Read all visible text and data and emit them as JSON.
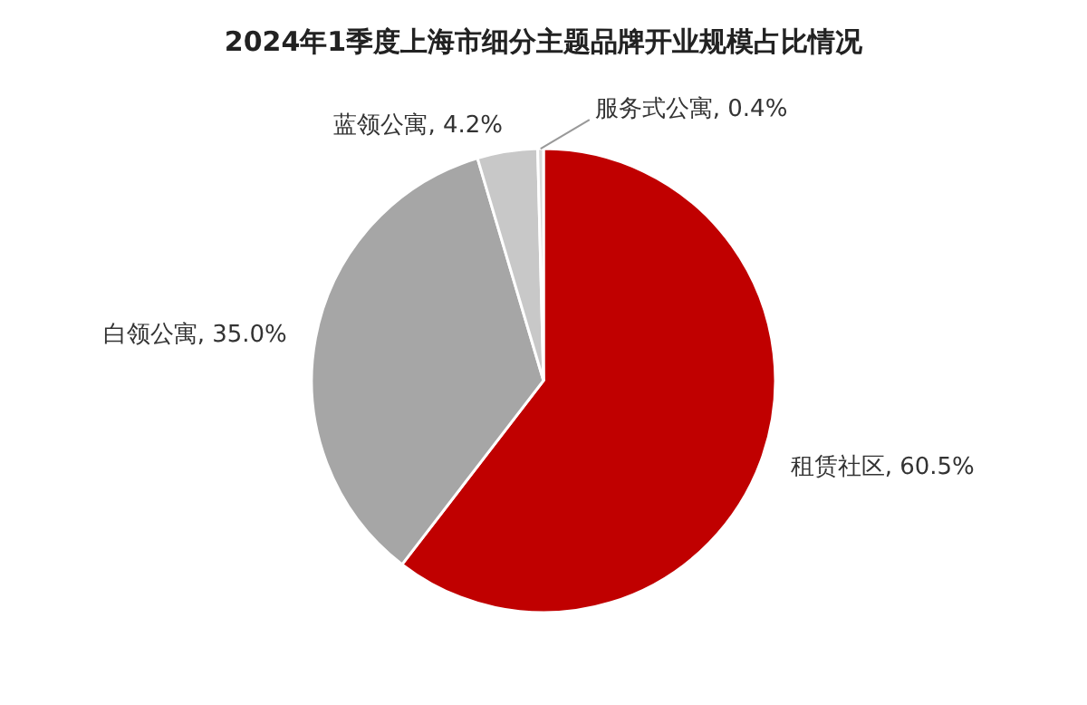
{
  "chart_data": {
    "type": "pie",
    "title": "2024年1季度上海市细分主题品牌开业规模占比情况",
    "categories": [
      "租赁社区",
      "白领公寓",
      "蓝领公寓",
      "服务式公寓"
    ],
    "values": [
      60.5,
      35.0,
      4.2,
      0.4
    ],
    "value_labels": [
      "60.5%",
      "35.0%",
      "4.2%",
      "0.4%"
    ],
    "colors": [
      "#c00000",
      "#a6a6a6",
      "#c8c8c8",
      "#d9d9d9"
    ],
    "legend": false
  }
}
